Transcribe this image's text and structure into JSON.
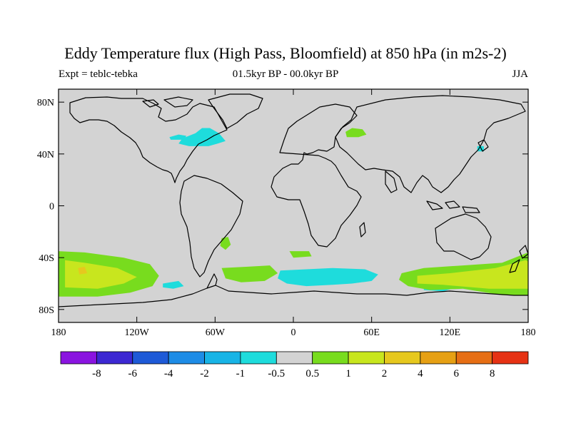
{
  "title": "Eddy Temperature flux (High Pass, Bloomfield) at 850 hPa (in m2s-2)",
  "subtitle_left": "Expt = teblc-tebka",
  "subtitle_center": "01.5kyr BP - 00.0kyr BP",
  "subtitle_right": "JJA",
  "map": {
    "projection": "cylindrical-equidistant",
    "lon_range": [
      -180,
      180
    ],
    "lat_range": [
      -90,
      90
    ],
    "background_color": "#d3d3d3",
    "coastline_color": "#000000",
    "x_ticks": [
      {
        "lon": -180,
        "label": "180"
      },
      {
        "lon": -120,
        "label": "120W"
      },
      {
        "lon": -60,
        "label": "60W"
      },
      {
        "lon": 0,
        "label": "0"
      },
      {
        "lon": 60,
        "label": "60E"
      },
      {
        "lon": 120,
        "label": "120E"
      },
      {
        "lon": 180,
        "label": "180"
      }
    ],
    "y_ticks": [
      {
        "lat": 80,
        "label": "80N"
      },
      {
        "lat": 40,
        "label": "40N"
      },
      {
        "lat": 0,
        "label": "0"
      },
      {
        "lat": -40,
        "label": "40S"
      },
      {
        "lat": -80,
        "label": "80S"
      }
    ]
  },
  "colorbar": {
    "colors": [
      "#8a14e0",
      "#3c28d2",
      "#1e5ad7",
      "#1e8ce6",
      "#18b4e6",
      "#1edcdc",
      "#d3d3d3",
      "#78dc1e",
      "#c8e61e",
      "#e6c81e",
      "#e6a014",
      "#e66e14",
      "#e63214"
    ],
    "labels": [
      "-8",
      "-6",
      "-4",
      "-2",
      "-1",
      "-0.5",
      "0.5",
      "1",
      "2",
      "4",
      "6",
      "8"
    ]
  },
  "regions": [
    {
      "level": "-1",
      "color": "#1edcdc",
      "points": [
        [
          -75,
          56
        ],
        [
          -70,
          60
        ],
        [
          -64,
          60
        ],
        [
          -57,
          56
        ],
        [
          -52,
          50
        ],
        [
          -58,
          48
        ],
        [
          -65,
          46
        ],
        [
          -72,
          46
        ],
        [
          -80,
          46
        ],
        [
          -88,
          48
        ],
        [
          -85,
          52
        ]
      ]
    },
    {
      "level": "-1",
      "color": "#1edcdc",
      "points": [
        [
          -95,
          53
        ],
        [
          -88,
          55
        ],
        [
          -82,
          54
        ],
        [
          -84,
          51
        ],
        [
          -94,
          51
        ]
      ]
    },
    {
      "level": "-1",
      "color": "#1edcdc",
      "points": [
        [
          141,
          42
        ],
        [
          146,
          42
        ],
        [
          146,
          46
        ],
        [
          141,
          46
        ]
      ]
    },
    {
      "level": "-1",
      "color": "#1edcdc",
      "points": [
        [
          -100,
          -60
        ],
        [
          -88,
          -58
        ],
        [
          -84,
          -62
        ],
        [
          -92,
          -64
        ],
        [
          -100,
          -63
        ]
      ]
    },
    {
      "level": "-1",
      "color": "#1edcdc",
      "points": [
        [
          -10,
          -50
        ],
        [
          10,
          -49
        ],
        [
          30,
          -48
        ],
        [
          55,
          -49
        ],
        [
          65,
          -53
        ],
        [
          60,
          -58
        ],
        [
          45,
          -60
        ],
        [
          30,
          -61
        ],
        [
          10,
          -62
        ],
        [
          -5,
          -60
        ],
        [
          -12,
          -56
        ]
      ]
    },
    {
      "level": "-1",
      "color": "#1edcdc",
      "points": [
        [
          100,
          -60
        ],
        [
          115,
          -60
        ],
        [
          125,
          -63
        ],
        [
          115,
          -66
        ],
        [
          100,
          -65
        ]
      ]
    },
    {
      "level": "1",
      "color": "#78dc1e",
      "points": [
        [
          41,
          53
        ],
        [
          50,
          53
        ],
        [
          56,
          55
        ],
        [
          53,
          59
        ],
        [
          45,
          60
        ],
        [
          40,
          57
        ]
      ]
    },
    {
      "level": "1",
      "color": "#78dc1e",
      "points": [
        [
          -55,
          -25
        ],
        [
          -50,
          -24
        ],
        [
          -48,
          -30
        ],
        [
          -52,
          -34
        ],
        [
          -56,
          -31
        ]
      ]
    },
    {
      "level": "1",
      "color": "#78dc1e",
      "points": [
        [
          -180,
          -35
        ],
        [
          -160,
          -36
        ],
        [
          -130,
          -40
        ],
        [
          -110,
          -45
        ],
        [
          -103,
          -54
        ],
        [
          -108,
          -62
        ],
        [
          -125,
          -67
        ],
        [
          -150,
          -70
        ],
        [
          -180,
          -70
        ]
      ]
    },
    {
      "level": "1",
      "color": "#78dc1e",
      "points": [
        [
          -55,
          -48
        ],
        [
          -35,
          -47
        ],
        [
          -18,
          -46
        ],
        [
          -12,
          -52
        ],
        [
          -22,
          -58
        ],
        [
          -40,
          -59
        ],
        [
          -52,
          -56
        ]
      ]
    },
    {
      "level": "1",
      "color": "#78dc1e",
      "points": [
        [
          -3,
          -35
        ],
        [
          12,
          -35
        ],
        [
          14,
          -39
        ],
        [
          0,
          -40
        ]
      ]
    },
    {
      "level": "1",
      "color": "#78dc1e",
      "points": [
        [
          83,
          -52
        ],
        [
          100,
          -48
        ],
        [
          130,
          -46
        ],
        [
          160,
          -44
        ],
        [
          175,
          -38
        ],
        [
          180,
          -36
        ],
        [
          180,
          -69
        ],
        [
          160,
          -69
        ],
        [
          130,
          -64
        ],
        [
          105,
          -65
        ],
        [
          88,
          -62
        ],
        [
          81,
          -57
        ]
      ]
    },
    {
      "level": "2",
      "color": "#c8e61e",
      "points": [
        [
          -175,
          -42
        ],
        [
          -160,
          -44
        ],
        [
          -135,
          -48
        ],
        [
          -120,
          -55
        ],
        [
          -130,
          -60
        ],
        [
          -150,
          -64
        ],
        [
          -175,
          -63
        ]
      ]
    },
    {
      "level": "2",
      "color": "#c8e61e",
      "points": [
        [
          95,
          -54
        ],
        [
          120,
          -52
        ],
        [
          155,
          -48
        ],
        [
          178,
          -42
        ],
        [
          180,
          -43
        ],
        [
          180,
          -64
        ],
        [
          150,
          -64
        ],
        [
          115,
          -61
        ],
        [
          95,
          -60
        ]
      ]
    },
    {
      "level": "4",
      "color": "#e6c81e",
      "points": [
        [
          -165,
          -48
        ],
        [
          -160,
          -47
        ],
        [
          -158,
          -52
        ],
        [
          -164,
          -53
        ]
      ]
    }
  ]
}
